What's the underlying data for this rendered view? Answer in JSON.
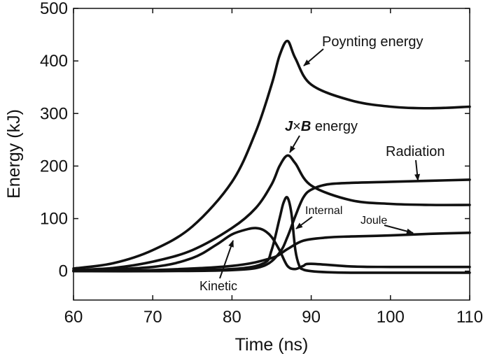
{
  "chart_data": {
    "type": "line",
    "title": "",
    "xlabel": "Time (ns)",
    "ylabel": "Energy (kJ)",
    "xlim": [
      60,
      110
    ],
    "ylim": [
      -55,
      500
    ],
    "xticks": [
      60,
      70,
      80,
      90,
      100,
      110
    ],
    "yticks": [
      0,
      100,
      200,
      300,
      400,
      500
    ],
    "grid": false,
    "legend": "none",
    "line_color": "#111111",
    "series": [
      {
        "name": "Poynting energy",
        "x": [
          60,
          65,
          70,
          75,
          80,
          83,
          85,
          86,
          87,
          88,
          90,
          95,
          100,
          105,
          110
        ],
        "y": [
          5,
          15,
          40,
          85,
          170,
          265,
          355,
          410,
          438,
          405,
          355,
          325,
          313,
          310,
          313
        ]
      },
      {
        "name": "J×B energy",
        "x": [
          60,
          65,
          70,
          75,
          80,
          83,
          85,
          86,
          87,
          88,
          90,
          95,
          100,
          105,
          110
        ],
        "y": [
          2,
          6,
          18,
          40,
          82,
          120,
          165,
          200,
          220,
          205,
          163,
          135,
          128,
          126,
          126
        ]
      },
      {
        "name": "Radiation",
        "x": [
          60,
          70,
          80,
          84,
          86,
          87,
          88,
          89,
          90,
          92,
          95,
          100,
          105,
          110
        ],
        "y": [
          0,
          0,
          2,
          10,
          35,
          65,
          105,
          140,
          155,
          165,
          168,
          170,
          172,
          174
        ]
      },
      {
        "name": "Joule",
        "x": [
          60,
          70,
          80,
          85,
          87,
          89,
          92,
          95,
          100,
          105,
          110
        ],
        "y": [
          0,
          2,
          10,
          25,
          42,
          58,
          64,
          66,
          68,
          71,
          73
        ]
      },
      {
        "name": "Internal",
        "x": [
          60,
          70,
          80,
          84,
          85,
          86,
          86.5,
          87,
          87.5,
          88,
          88.5,
          89,
          90,
          92,
          95,
          100,
          110
        ],
        "y": [
          0,
          1,
          4,
          15,
          40,
          100,
          130,
          140,
          110,
          40,
          10,
          3,
          0,
          -2,
          -3,
          -3,
          -3
        ]
      },
      {
        "name": "Kinetic",
        "x": [
          60,
          70,
          75,
          78,
          80,
          82,
          83,
          84,
          85,
          86,
          87,
          88,
          89,
          90,
          95,
          100,
          110
        ],
        "y": [
          0,
          8,
          25,
          50,
          70,
          80,
          82,
          78,
          65,
          40,
          10,
          4,
          10,
          14,
          9,
          8,
          8
        ]
      }
    ],
    "annotations": {
      "poynting": "Poynting energy",
      "jxb_j": "J",
      "jxb_times": "×",
      "jxb_b": "B",
      "jxb_rest": " energy",
      "radiation": "Radiation",
      "internal": "Internal",
      "joule": "Joule",
      "kinetic": "Kinetic"
    }
  }
}
